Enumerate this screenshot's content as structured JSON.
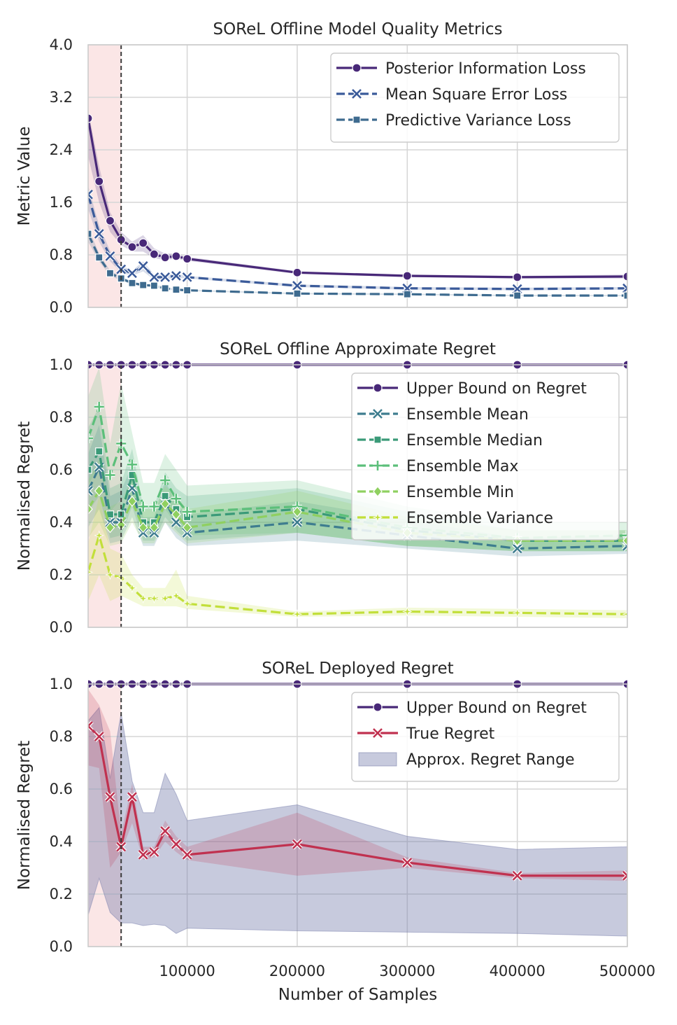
{
  "chart_data": [
    {
      "type": "line",
      "title": "SOReL Offline Model Quality Metrics",
      "xlabel": "",
      "ylabel": "Metric Value",
      "xlim": [
        10000,
        500000
      ],
      "ylim": [
        0,
        4.0
      ],
      "yticks": [
        "0.0",
        "0.8",
        "1.6",
        "2.4",
        "3.2",
        "4.0"
      ],
      "ytick_values": [
        0,
        0.8,
        1.6,
        2.4,
        3.2,
        4.0
      ],
      "xticks": [],
      "xtick_values": [
        100000,
        200000,
        300000,
        400000,
        500000
      ],
      "shaded_region": [
        10000,
        40000
      ],
      "vline": 40000,
      "legend_position": "top-right",
      "x": [
        10000,
        20000,
        30000,
        40000,
        50000,
        60000,
        70000,
        80000,
        90000,
        100000,
        200000,
        300000,
        400000,
        500000
      ],
      "series": [
        {
          "name": "Posterior Information Loss",
          "color": "#482878",
          "marker": "circle",
          "dash": "solid",
          "values": [
            2.88,
            1.92,
            1.32,
            1.03,
            0.92,
            0.98,
            0.81,
            0.76,
            0.78,
            0.74,
            0.53,
            0.48,
            0.46,
            0.47
          ],
          "band_lo": [
            2.3,
            1.6,
            1.15,
            0.95,
            0.85,
            0.85,
            0.75,
            0.72,
            0.74,
            0.71,
            0.51,
            0.46,
            0.44,
            0.44
          ],
          "band_hi": [
            3.0,
            2.15,
            1.45,
            1.15,
            1.0,
            1.1,
            0.9,
            0.82,
            0.82,
            0.77,
            0.55,
            0.5,
            0.48,
            0.5
          ]
        },
        {
          "name": "Mean Square Error Loss",
          "color": "#3b5b9a",
          "marker": "x",
          "dash": "dashed",
          "values": [
            1.72,
            1.12,
            0.78,
            0.58,
            0.52,
            0.63,
            0.46,
            0.46,
            0.48,
            0.46,
            0.33,
            0.29,
            0.28,
            0.29
          ],
          "band_lo": [
            1.5,
            1.0,
            0.7,
            0.53,
            0.48,
            0.55,
            0.42,
            0.43,
            0.45,
            0.44,
            0.31,
            0.27,
            0.26,
            0.27
          ],
          "band_hi": [
            1.85,
            1.25,
            0.86,
            0.64,
            0.56,
            0.7,
            0.5,
            0.5,
            0.51,
            0.48,
            0.35,
            0.31,
            0.3,
            0.31
          ]
        },
        {
          "name": "Predictive Variance Loss",
          "color": "#3e6b8f",
          "marker": "square",
          "dash": "dashed",
          "values": [
            1.12,
            0.76,
            0.52,
            0.44,
            0.37,
            0.34,
            0.33,
            0.29,
            0.27,
            0.26,
            0.21,
            0.2,
            0.18,
            0.18
          ],
          "band_lo": [
            1.0,
            0.7,
            0.48,
            0.41,
            0.35,
            0.32,
            0.31,
            0.27,
            0.26,
            0.25,
            0.2,
            0.19,
            0.17,
            0.17
          ],
          "band_hi": [
            1.22,
            0.82,
            0.56,
            0.47,
            0.39,
            0.36,
            0.35,
            0.31,
            0.28,
            0.27,
            0.22,
            0.21,
            0.19,
            0.19
          ]
        }
      ]
    },
    {
      "type": "line",
      "title": "SOReL Offline Approximate Regret",
      "xlabel": "",
      "ylabel": "Normalised Regret",
      "xlim": [
        10000,
        500000
      ],
      "ylim": [
        0,
        1.0
      ],
      "yticks": [
        "0.0",
        "0.2",
        "0.4",
        "0.6",
        "0.8",
        "1.0"
      ],
      "ytick_values": [
        0,
        0.2,
        0.4,
        0.6,
        0.8,
        1.0
      ],
      "xticks": [],
      "xtick_values": [
        100000,
        200000,
        300000,
        400000,
        500000
      ],
      "shaded_region": [
        10000,
        40000
      ],
      "vline": 40000,
      "legend_position": "top-right",
      "x": [
        10000,
        20000,
        30000,
        40000,
        50000,
        60000,
        70000,
        80000,
        90000,
        100000,
        200000,
        300000,
        400000,
        500000
      ],
      "series": [
        {
          "name": "Upper Bound on Regret",
          "color": "#482878",
          "marker": "circle",
          "dash": "solid",
          "values": [
            1,
            1,
            1,
            1,
            1,
            1,
            1,
            1,
            1,
            1,
            1,
            1,
            1,
            1
          ]
        },
        {
          "name": "Ensemble Mean",
          "color": "#3e7d8f",
          "marker": "x",
          "dash": "dashed",
          "values": [
            0.52,
            0.61,
            0.4,
            0.4,
            0.53,
            0.36,
            0.36,
            0.48,
            0.4,
            0.36,
            0.4,
            0.35,
            0.3,
            0.31
          ],
          "band_lo": [
            0.38,
            0.45,
            0.32,
            0.33,
            0.42,
            0.31,
            0.31,
            0.4,
            0.34,
            0.31,
            0.33,
            0.3,
            0.27,
            0.28
          ],
          "band_hi": [
            0.66,
            0.77,
            0.5,
            0.52,
            0.62,
            0.42,
            0.42,
            0.56,
            0.47,
            0.43,
            0.48,
            0.41,
            0.34,
            0.35
          ]
        },
        {
          "name": "Ensemble Median",
          "color": "#3a9a78",
          "marker": "square",
          "dash": "dashed",
          "values": [
            0.6,
            0.67,
            0.43,
            0.43,
            0.58,
            0.4,
            0.4,
            0.5,
            0.45,
            0.42,
            0.45,
            0.37,
            0.33,
            0.33
          ],
          "band_lo": [
            0.44,
            0.5,
            0.34,
            0.35,
            0.46,
            0.33,
            0.33,
            0.42,
            0.37,
            0.33,
            0.36,
            0.31,
            0.29,
            0.29
          ],
          "band_hi": [
            0.76,
            0.84,
            0.53,
            0.55,
            0.68,
            0.46,
            0.46,
            0.59,
            0.53,
            0.5,
            0.53,
            0.44,
            0.37,
            0.37
          ]
        },
        {
          "name": "Ensemble Max",
          "color": "#5cbf7a",
          "marker": "plus",
          "dash": "dashed",
          "values": [
            0.72,
            0.84,
            0.58,
            0.7,
            0.62,
            0.46,
            0.46,
            0.56,
            0.49,
            0.44,
            0.46,
            0.38,
            0.34,
            0.35
          ],
          "band_lo": [
            0.54,
            0.62,
            0.44,
            0.49,
            0.49,
            0.37,
            0.37,
            0.45,
            0.39,
            0.35,
            0.36,
            0.31,
            0.29,
            0.29
          ],
          "band_hi": [
            0.88,
            0.99,
            0.7,
            0.93,
            0.74,
            0.55,
            0.55,
            0.66,
            0.6,
            0.54,
            0.56,
            0.46,
            0.4,
            0.4
          ]
        },
        {
          "name": "Ensemble Min",
          "color": "#8fd060",
          "marker": "diamond",
          "dash": "dashed",
          "values": [
            0.45,
            0.52,
            0.38,
            0.39,
            0.48,
            0.38,
            0.38,
            0.47,
            0.43,
            0.38,
            0.44,
            0.36,
            0.33,
            0.33
          ],
          "band_lo": [
            0.34,
            0.4,
            0.31,
            0.32,
            0.4,
            0.32,
            0.32,
            0.4,
            0.36,
            0.32,
            0.36,
            0.31,
            0.29,
            0.29
          ],
          "band_hi": [
            0.56,
            0.64,
            0.46,
            0.48,
            0.57,
            0.45,
            0.45,
            0.54,
            0.5,
            0.45,
            0.52,
            0.42,
            0.37,
            0.37
          ]
        },
        {
          "name": "Ensemble Variance",
          "color": "#c2df3a",
          "marker": "star",
          "dash": "dashed",
          "values": [
            0.21,
            0.35,
            0.2,
            0.19,
            0.15,
            0.11,
            0.11,
            0.11,
            0.12,
            0.09,
            0.05,
            0.06,
            0.055,
            0.05
          ],
          "band_lo": [
            0.1,
            0.2,
            0.1,
            0.12,
            0.1,
            0.08,
            0.08,
            0.08,
            0.08,
            0.07,
            0.04,
            0.045,
            0.04,
            0.035
          ],
          "band_hi": [
            0.32,
            0.5,
            0.3,
            0.28,
            0.2,
            0.15,
            0.15,
            0.15,
            0.22,
            0.12,
            0.06,
            0.075,
            0.07,
            0.065
          ]
        }
      ]
    },
    {
      "type": "line",
      "title": "SOReL Deployed Regret",
      "xlabel": "Number of Samples",
      "ylabel": "Normalised Regret",
      "xlim": [
        10000,
        500000
      ],
      "ylim": [
        0,
        1.0
      ],
      "yticks": [
        "0.0",
        "0.2",
        "0.4",
        "0.6",
        "0.8",
        "1.0"
      ],
      "ytick_values": [
        0,
        0.2,
        0.4,
        0.6,
        0.8,
        1.0
      ],
      "xticks": [
        "100000",
        "200000",
        "300000",
        "400000",
        "500000"
      ],
      "xtick_values": [
        100000,
        200000,
        300000,
        400000,
        500000
      ],
      "shaded_region": [
        10000,
        40000
      ],
      "vline": 40000,
      "legend_position": "top-right",
      "x": [
        10000,
        20000,
        30000,
        40000,
        50000,
        60000,
        70000,
        80000,
        90000,
        100000,
        200000,
        300000,
        400000,
        500000
      ],
      "range_band": {
        "name": "Approx. Regret Range",
        "color": "#7a80ad",
        "lo": [
          0.12,
          0.26,
          0.13,
          0.09,
          0.09,
          0.08,
          0.085,
          0.08,
          0.05,
          0.07,
          0.06,
          0.055,
          0.05,
          0.04
        ],
        "hi": [
          0.86,
          0.91,
          0.64,
          0.89,
          0.63,
          0.51,
          0.51,
          0.66,
          0.58,
          0.48,
          0.54,
          0.42,
          0.37,
          0.38
        ]
      },
      "series": [
        {
          "name": "Upper Bound on Regret",
          "color": "#482878",
          "marker": "circle",
          "dash": "solid",
          "values": [
            1,
            1,
            1,
            1,
            1,
            1,
            1,
            1,
            1,
            1,
            1,
            1,
            1,
            1
          ]
        },
        {
          "name": "True Regret",
          "color": "#c0314f",
          "marker": "x",
          "dash": "solid",
          "values": [
            0.84,
            0.8,
            0.57,
            0.38,
            0.57,
            0.35,
            0.36,
            0.44,
            0.39,
            0.35,
            0.39,
            0.32,
            0.27,
            0.27
          ],
          "band_lo": [
            0.69,
            0.68,
            0.3,
            0.36,
            0.47,
            0.33,
            0.34,
            0.4,
            0.36,
            0.33,
            0.27,
            0.3,
            0.26,
            0.25
          ],
          "band_hi": [
            0.98,
            0.92,
            0.82,
            0.43,
            0.62,
            0.38,
            0.38,
            0.48,
            0.42,
            0.38,
            0.51,
            0.34,
            0.28,
            0.29
          ]
        }
      ]
    }
  ]
}
